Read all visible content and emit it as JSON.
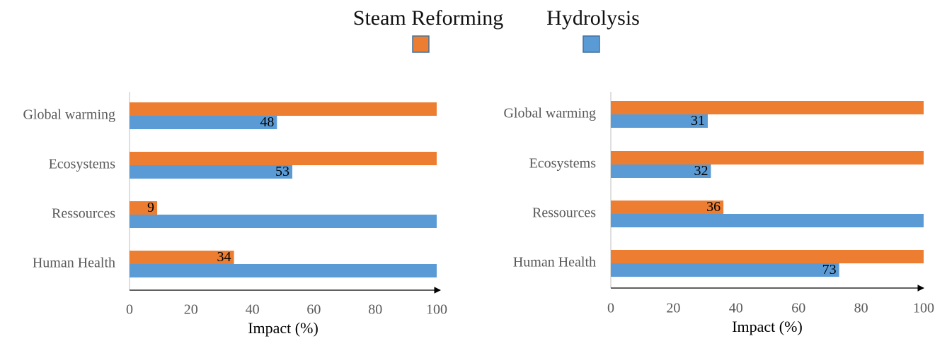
{
  "chart_data": [
    {
      "type": "bar",
      "orientation": "horizontal",
      "categories": [
        "Global warming",
        "Ecosystems",
        "Ressources",
        "Human Health"
      ],
      "series": [
        {
          "name": "Steam Reforming",
          "color": "#ed7d31",
          "values": [
            100,
            100,
            9,
            34
          ],
          "value_labels": [
            null,
            null,
            "9",
            "34"
          ]
        },
        {
          "name": "Hydrolysis",
          "color": "#5b9bd5",
          "values": [
            48,
            53,
            100,
            100
          ],
          "value_labels": [
            "48",
            "53",
            null,
            null
          ]
        }
      ],
      "xlabel": "Impact (%)",
      "xlim": [
        0,
        100
      ],
      "xticks": [
        0,
        20,
        40,
        60,
        80,
        100
      ]
    },
    {
      "type": "bar",
      "orientation": "horizontal",
      "categories": [
        "Global warming",
        "Ecosystems",
        "Ressources",
        "Human Health"
      ],
      "series": [
        {
          "name": "Steam Reforming",
          "color": "#ed7d31",
          "values": [
            100,
            100,
            36,
            100
          ],
          "value_labels": [
            null,
            null,
            "36",
            null
          ]
        },
        {
          "name": "Hydrolysis",
          "color": "#5b9bd5",
          "values": [
            31,
            32,
            100,
            73
          ],
          "value_labels": [
            "31",
            "32",
            null,
            "73"
          ]
        }
      ],
      "xlabel": "Impact (%)",
      "xlim": [
        0,
        100
      ],
      "xticks": [
        0,
        20,
        40,
        60,
        80,
        100
      ]
    }
  ]
}
